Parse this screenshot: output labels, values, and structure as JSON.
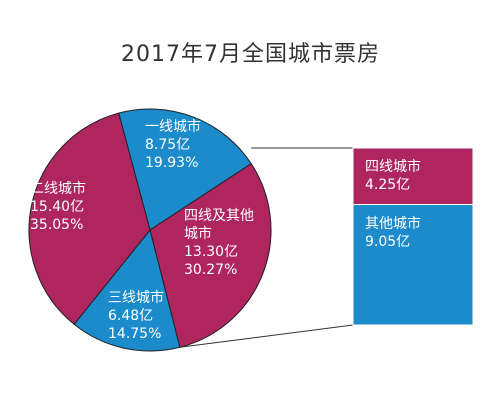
{
  "chart_data": {
    "type": "pie_of_bar",
    "title": "2017年7月全国城市票房",
    "categories": [
      "一线城市",
      "四线及其他城市",
      "三线城市",
      "二线城市"
    ],
    "values": [
      19.93,
      30.27,
      14.75,
      35.05
    ],
    "value_labels": [
      "19.93%",
      "30.27%",
      "14.75%",
      "35.05%"
    ],
    "amounts": [
      8.75,
      13.3,
      6.48,
      15.4
    ],
    "amount_labels": [
      "8.75亿",
      "13.30亿",
      "6.48亿",
      "15.40亿"
    ],
    "colors": [
      "#1b8bcb",
      "#ae2560",
      "#1b8bcb",
      "#ae2560"
    ],
    "bar": {
      "categories": [
        "四线城市",
        "其他城市"
      ],
      "values": [
        4.25,
        9.05
      ],
      "value_labels": [
        "4.25亿",
        "9.05亿"
      ],
      "colors": [
        "#ae2560",
        "#1b8bcb"
      ]
    }
  }
}
